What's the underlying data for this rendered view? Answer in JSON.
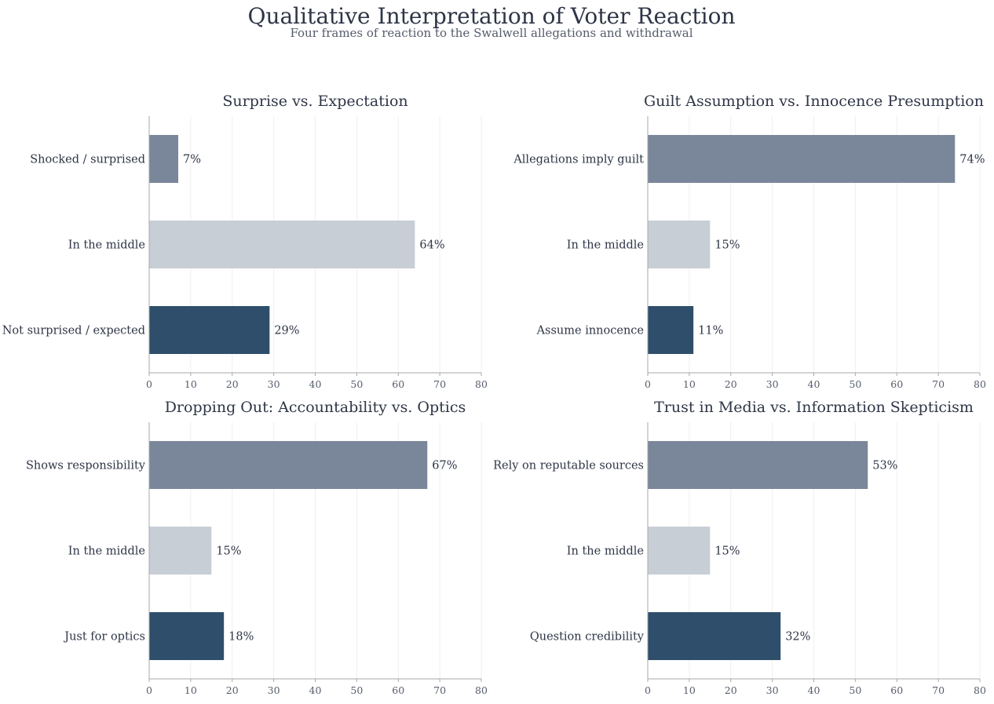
{
  "figure": {
    "title": "Qualitative Interpretation of Voter Reaction",
    "subtitle": "Four frames of reaction to the Swalwell allegations and withdrawal"
  },
  "colors": {
    "top": "#7a8699",
    "middle": "#c7ced6",
    "bottom": "#2e4e6b",
    "grid": "#efefef",
    "axis": "#a8a8a8"
  },
  "chart_data": [
    {
      "type": "bar",
      "orientation": "horizontal",
      "title": "Surprise vs. Expectation",
      "categories": [
        "Shocked / surprised",
        "In the middle",
        "Not surprised / expected"
      ],
      "values": [
        7,
        64,
        29
      ],
      "value_labels": [
        "7%",
        "64%",
        "29%"
      ],
      "xlim": [
        0,
        80
      ],
      "xticks": [
        0,
        10,
        20,
        30,
        40,
        50,
        60,
        70,
        80
      ],
      "grid": true
    },
    {
      "type": "bar",
      "orientation": "horizontal",
      "title": "Guilt Assumption vs. Innocence Presumption",
      "categories": [
        "Allegations imply guilt",
        "In the middle",
        "Assume innocence"
      ],
      "values": [
        74,
        15,
        11
      ],
      "value_labels": [
        "74%",
        "15%",
        "11%"
      ],
      "xlim": [
        0,
        80
      ],
      "xticks": [
        0,
        10,
        20,
        30,
        40,
        50,
        60,
        70,
        80
      ],
      "grid": true
    },
    {
      "type": "bar",
      "orientation": "horizontal",
      "title": "Dropping Out: Accountability vs. Optics",
      "categories": [
        "Shows responsibility",
        "In the middle",
        "Just for optics"
      ],
      "values": [
        67,
        15,
        18
      ],
      "value_labels": [
        "67%",
        "15%",
        "18%"
      ],
      "xlim": [
        0,
        80
      ],
      "xticks": [
        0,
        10,
        20,
        30,
        40,
        50,
        60,
        70,
        80
      ],
      "grid": true
    },
    {
      "type": "bar",
      "orientation": "horizontal",
      "title": "Trust in Media vs. Information Skepticism",
      "categories": [
        "Rely on reputable sources",
        "In the middle",
        "Question credibility"
      ],
      "values": [
        53,
        15,
        32
      ],
      "value_labels": [
        "53%",
        "15%",
        "32%"
      ],
      "xlim": [
        0,
        80
      ],
      "xticks": [
        0,
        10,
        20,
        30,
        40,
        50,
        60,
        70,
        80
      ],
      "grid": true
    }
  ]
}
